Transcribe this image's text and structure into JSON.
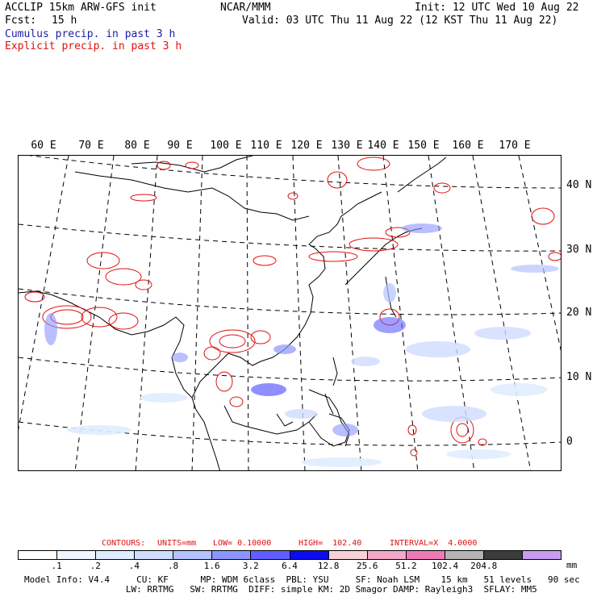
{
  "header": {
    "title": "ACCLIP 15km ARW-GFS init",
    "center": "NCAR/MMM",
    "init": "Init: 12 UTC Wed 10 Aug 22",
    "fcst_label": "Fcst:",
    "fcst_value": "15 h",
    "valid": "Valid: 03 UTC Thu 11 Aug 22 (12 KST Thu 11 Aug 22)",
    "legend_cumulus": "Cumulus precip. in past 3 h",
    "legend_explicit": "Explicit precip. in past 3 h"
  },
  "map": {
    "lon_labels": [
      "60 E",
      "70 E",
      "80 E",
      "90 E",
      "100 E",
      "110 E",
      "120 E",
      "130 E",
      "140 E",
      "150 E",
      "160 E",
      "170 E"
    ],
    "lat_labels": [
      "40 N",
      "30 N",
      "20 N",
      "10 N",
      "0"
    ]
  },
  "contours": {
    "label": "CONTOURS:",
    "units": "UNITS=mm",
    "low": "LOW= 0.10000",
    "high": "HIGH=  102.40",
    "interval": "INTERVAL=X  4.0000"
  },
  "colorbar": {
    "colors": [
      "#ffffff",
      "#f0f6ff",
      "#e0ecff",
      "#cfdcff",
      "#b4c3ff",
      "#8b95ff",
      "#5f5fff",
      "#0c0cf0",
      "#f8d0d8",
      "#f3a8c8",
      "#ef7ab6",
      "#b4b4b4",
      "#3c3c3c",
      "#c89cf0"
    ],
    "labels": [
      ".1",
      ".2",
      ".4",
      ".8",
      "1.6",
      "3.2",
      "6.4",
      "12.8",
      "25.6",
      "51.2",
      "102.4",
      "204.8"
    ],
    "unit": "mm"
  },
  "footer": {
    "line1": "Model Info: V4.4     CU: KF      MP: WDM 6class  PBL: YSU     SF: Noah LSM    15 km   51 levels   90 sec",
    "line2": "                   LW: RRTMG   SW: RRTMG  DIFF: simple KM: 2D Smagor DAMP: Rayleigh3  SFLAY: MM5"
  }
}
